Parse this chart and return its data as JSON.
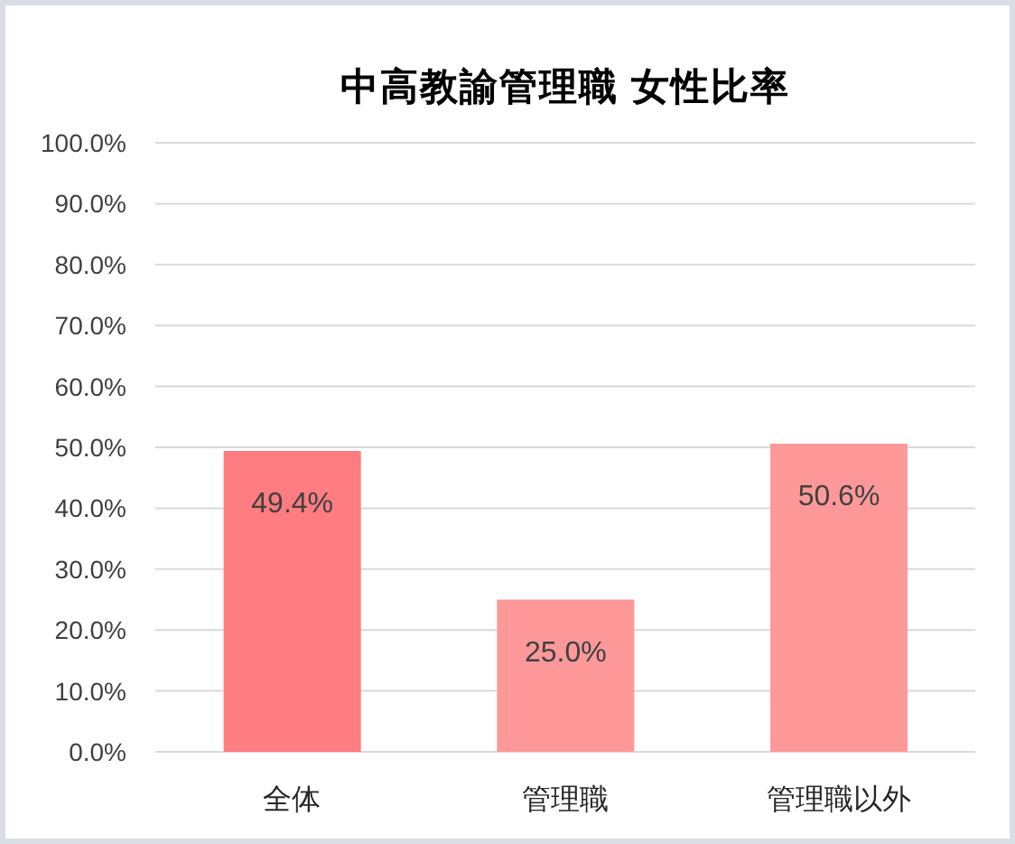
{
  "chart_data": {
    "type": "bar",
    "title": "中高教諭管理職 女性比率",
    "categories": [
      "全体",
      "管理職",
      "管理職以外"
    ],
    "values": [
      49.4,
      25.0,
      50.6
    ],
    "value_labels": [
      "49.4%",
      "25.0%",
      "50.6%"
    ],
    "colors": [
      "#ff7c80",
      "#ff9999",
      "#ff9999"
    ],
    "ylim": [
      0,
      100
    ],
    "yticks": [
      {
        "value": 0,
        "label": "0.0%"
      },
      {
        "value": 10,
        "label": "10.0%"
      },
      {
        "value": 20,
        "label": "20.0%"
      },
      {
        "value": 30,
        "label": "30.0%"
      },
      {
        "value": 40,
        "label": "40.0%"
      },
      {
        "value": 50,
        "label": "50.0%"
      },
      {
        "value": 60,
        "label": "60.0%"
      },
      {
        "value": 70,
        "label": "70.0%"
      },
      {
        "value": 80,
        "label": "80.0%"
      },
      {
        "value": 90,
        "label": "90.0%"
      },
      {
        "value": 100,
        "label": "100.0%"
      }
    ],
    "grid": "y"
  }
}
